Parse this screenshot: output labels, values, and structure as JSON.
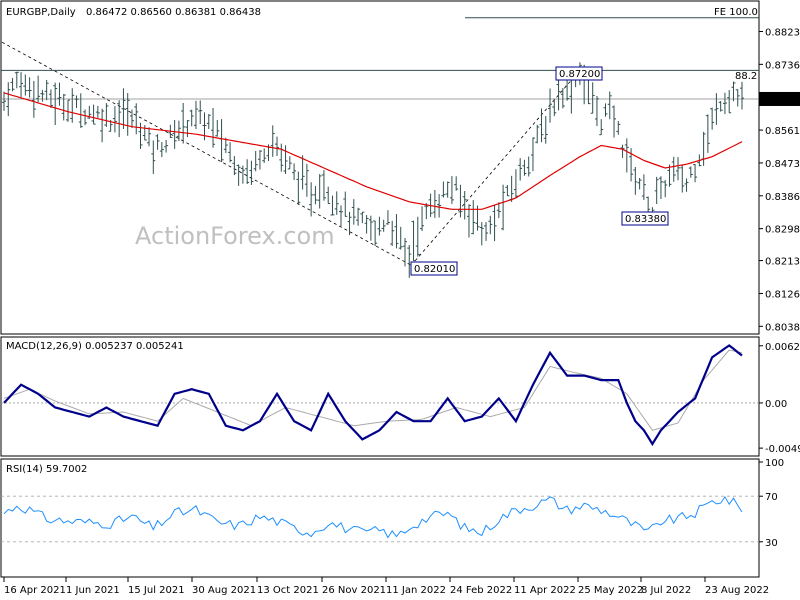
{
  "header": {
    "symbol": "EURGBP,Daily",
    "ohlc": "0.86472 0.86560 0.86381 0.86438"
  },
  "watermark": "ActionForex.com",
  "chart_data": [
    {
      "type": "bar",
      "title": "EURGBP,Daily",
      "ylim": [
        0.8034,
        0.8886
      ],
      "y_ticks": [
        "0.88235",
        "0.87360",
        "0.86438",
        "0.85610",
        "0.84735",
        "0.83860",
        "0.82985",
        "0.82135",
        "0.81260",
        "0.80385"
      ],
      "x_ticks": [
        "16 Apr 2021",
        "1 Jun 2021",
        "15 Jul 2021",
        "30 Aug 2021",
        "13 Oct 2021",
        "26 Nov 2021",
        "11 Jan 2022",
        "24 Feb 2022",
        "11 Apr 2022",
        "25 May 2022",
        "8 Jul 2022",
        "23 Aug 2022"
      ],
      "current_price": "0.86438",
      "current_price_value": 0.86438,
      "horizontal_lines": [
        {
          "label": "FE 100.0",
          "value": 0.886
        },
        {
          "label": "",
          "value": 0.872
        }
      ],
      "annotations": [
        {
          "label": "0.87200",
          "value": 0.872
        },
        {
          "label": "0.82010",
          "value": 0.8201
        },
        {
          "label": "0.83380",
          "value": 0.8338
        },
        {
          "label": "88.2",
          "value": 0.872
        }
      ],
      "trendlines": [
        {
          "style": "dashed",
          "from": 0.8795,
          "to": 0.8201
        },
        {
          "style": "dashed",
          "from": 0.8201,
          "to": 0.872
        }
      ],
      "series": [
        {
          "name": "",
          "type": "ohlc",
          "color": "#2f4f4f",
          "path": [
            [
              0,
              0.864
            ],
            [
              3,
              0.869
            ],
            [
              6,
              0.868
            ],
            [
              10,
              0.865
            ],
            [
              15,
              0.863
            ],
            [
              20,
              0.861
            ],
            [
              25,
              0.859
            ],
            [
              28,
              0.861
            ],
            [
              32,
              0.857
            ],
            [
              35,
              0.851
            ],
            [
              38,
              0.853
            ],
            [
              40,
              0.855
            ],
            [
              44,
              0.86
            ],
            [
              48,
              0.858
            ],
            [
              52,
              0.852
            ],
            [
              55,
              0.846
            ],
            [
              58,
              0.845
            ],
            [
              60,
              0.85
            ],
            [
              63,
              0.853
            ],
            [
              66,
              0.848
            ],
            [
              69,
              0.843
            ],
            [
              72,
              0.839
            ],
            [
              75,
              0.842
            ],
            [
              78,
              0.837
            ],
            [
              81,
              0.833
            ],
            [
              84,
              0.831
            ],
            [
              87,
              0.829
            ],
            [
              90,
              0.833
            ],
            [
              92,
              0.828
            ],
            [
              94,
              0.824
            ],
            [
              95,
              0.822
            ],
            [
              96,
              0.827
            ],
            [
              99,
              0.834
            ],
            [
              102,
              0.838
            ],
            [
              105,
              0.841
            ],
            [
              108,
              0.836
            ],
            [
              111,
              0.832
            ],
            [
              113,
              0.828
            ],
            [
              115,
              0.832
            ],
            [
              118,
              0.838
            ],
            [
              121,
              0.845
            ],
            [
              124,
              0.851
            ],
            [
              127,
              0.858
            ],
            [
              130,
              0.866
            ],
            [
              133,
              0.868
            ],
            [
              135,
              0.872
            ],
            [
              137,
              0.866
            ],
            [
              140,
              0.859
            ],
            [
              142,
              0.861
            ],
            [
              144,
              0.856
            ],
            [
              146,
              0.849
            ],
            [
              148,
              0.844
            ],
            [
              150,
              0.84
            ],
            [
              152,
              0.835
            ],
            [
              154,
              0.84
            ],
            [
              157,
              0.845
            ],
            [
              160,
              0.842
            ],
            [
              162,
              0.847
            ],
            [
              165,
              0.855
            ],
            [
              168,
              0.864
            ],
            [
              171,
              0.866
            ],
            [
              173,
              0.864
            ]
          ]
        },
        {
          "name": "",
          "type": "line",
          "color": "#e00000",
          "path": [
            [
              0,
              0.866
            ],
            [
              15,
              0.861
            ],
            [
              30,
              0.857
            ],
            [
              45,
              0.855
            ],
            [
              55,
              0.853
            ],
            [
              65,
              0.851
            ],
            [
              75,
              0.846
            ],
            [
              85,
              0.841
            ],
            [
              95,
              0.837
            ],
            [
              105,
              0.835
            ],
            [
              112,
              0.835
            ],
            [
              120,
              0.838
            ],
            [
              128,
              0.844
            ],
            [
              135,
              0.849
            ],
            [
              140,
              0.852
            ],
            [
              145,
              0.851
            ],
            [
              150,
              0.848
            ],
            [
              155,
              0.846
            ],
            [
              160,
              0.847
            ],
            [
              166,
              0.849
            ],
            [
              173,
              0.853
            ]
          ]
        }
      ]
    },
    {
      "type": "line",
      "title": "MACD(12,26,9) 0.005237 0.005241",
      "ylim": [
        -0.0056,
        0.0069
      ],
      "y_ticks": [
        "0.006266",
        "0.00",
        "-0.004956"
      ],
      "series": [
        {
          "name": "",
          "color": "#00008b",
          "path": [
            [
              0,
              0.0
            ],
            [
              4,
              0.002
            ],
            [
              8,
              0.001
            ],
            [
              12,
              -0.0005
            ],
            [
              16,
              -0.001
            ],
            [
              20,
              -0.0015
            ],
            [
              24,
              -0.0005
            ],
            [
              28,
              -0.0015
            ],
            [
              32,
              -0.002
            ],
            [
              36,
              -0.0025
            ],
            [
              40,
              0.001
            ],
            [
              44,
              0.0015
            ],
            [
              48,
              0.001
            ],
            [
              52,
              -0.0025
            ],
            [
              56,
              -0.003
            ],
            [
              60,
              -0.002
            ],
            [
              64,
              0.001
            ],
            [
              68,
              -0.002
            ],
            [
              72,
              -0.003
            ],
            [
              76,
              0.001
            ],
            [
              80,
              -0.002
            ],
            [
              84,
              -0.004
            ],
            [
              88,
              -0.003
            ],
            [
              92,
              -0.001
            ],
            [
              96,
              -0.002
            ],
            [
              100,
              -0.002
            ],
            [
              104,
              0.0005
            ],
            [
              108,
              -0.002
            ],
            [
              112,
              -0.0015
            ],
            [
              116,
              0.0005
            ],
            [
              120,
              -0.002
            ],
            [
              124,
              0.002
            ],
            [
              128,
              0.0055
            ],
            [
              132,
              0.003
            ],
            [
              136,
              0.003
            ],
            [
              140,
              0.0025
            ],
            [
              144,
              0.0025
            ],
            [
              146,
              0.0
            ],
            [
              148,
              -0.002
            ],
            [
              150,
              -0.003
            ],
            [
              152,
              -0.0045
            ],
            [
              154,
              -0.003
            ],
            [
              158,
              -0.001
            ],
            [
              162,
              0.0005
            ],
            [
              166,
              0.005
            ],
            [
              170,
              0.0063
            ],
            [
              173,
              0.0052
            ]
          ]
        },
        {
          "name": "",
          "color": "#aaaaaa",
          "path": [
            [
              0,
              0.0005
            ],
            [
              6,
              0.0015
            ],
            [
              12,
              0.0002
            ],
            [
              20,
              -0.0012
            ],
            [
              28,
              -0.001
            ],
            [
              36,
              -0.002
            ],
            [
              42,
              0.0005
            ],
            [
              50,
              -0.001
            ],
            [
              58,
              -0.0025
            ],
            [
              66,
              -0.0005
            ],
            [
              74,
              -0.0015
            ],
            [
              82,
              -0.0025
            ],
            [
              90,
              -0.002
            ],
            [
              98,
              -0.0018
            ],
            [
              106,
              -0.0005
            ],
            [
              114,
              -0.0015
            ],
            [
              122,
              -0.0005
            ],
            [
              128,
              0.004
            ],
            [
              134,
              0.0033
            ],
            [
              140,
              0.0027
            ],
            [
              146,
              0.001
            ],
            [
              152,
              -0.003
            ],
            [
              158,
              -0.0022
            ],
            [
              164,
              0.0025
            ],
            [
              170,
              0.0058
            ],
            [
              173,
              0.0055
            ]
          ]
        }
      ]
    },
    {
      "type": "line",
      "title": "RSI(14) 59.7002",
      "ylim": [
        0,
        100
      ],
      "y_ticks": [
        "100",
        "70",
        "30"
      ],
      "series": [
        {
          "name": "",
          "color": "#1e90ff",
          "path": [
            [
              0,
              55
            ],
            [
              3,
              62
            ],
            [
              6,
              58
            ],
            [
              10,
              50
            ],
            [
              15,
              48
            ],
            [
              20,
              47
            ],
            [
              25,
              46
            ],
            [
              30,
              52
            ],
            [
              35,
              42
            ],
            [
              40,
              55
            ],
            [
              45,
              58
            ],
            [
              50,
              47
            ],
            [
              55,
              44
            ],
            [
              60,
              52
            ],
            [
              64,
              48
            ],
            [
              68,
              42
            ],
            [
              72,
              38
            ],
            [
              76,
              47
            ],
            [
              80,
              42
            ],
            [
              84,
              38
            ],
            [
              88,
              40
            ],
            [
              92,
              35
            ],
            [
              96,
              45
            ],
            [
              100,
              52
            ],
            [
              104,
              55
            ],
            [
              108,
              42
            ],
            [
              112,
              38
            ],
            [
              116,
              50
            ],
            [
              120,
              58
            ],
            [
              124,
              62
            ],
            [
              128,
              67
            ],
            [
              132,
              58
            ],
            [
              136,
              62
            ],
            [
              140,
              58
            ],
            [
              144,
              52
            ],
            [
              148,
              44
            ],
            [
              151,
              38
            ],
            [
              154,
              48
            ],
            [
              158,
              50
            ],
            [
              162,
              55
            ],
            [
              166,
              65
            ],
            [
              169,
              68
            ],
            [
              173,
              60
            ]
          ]
        }
      ]
    }
  ],
  "colors": {
    "bars": "#2f4f4f",
    "ma": "#e00000",
    "macd": "#00008b",
    "signal": "#aaaaaa",
    "rsi": "#1e90ff",
    "annotation": "#00008b"
  }
}
